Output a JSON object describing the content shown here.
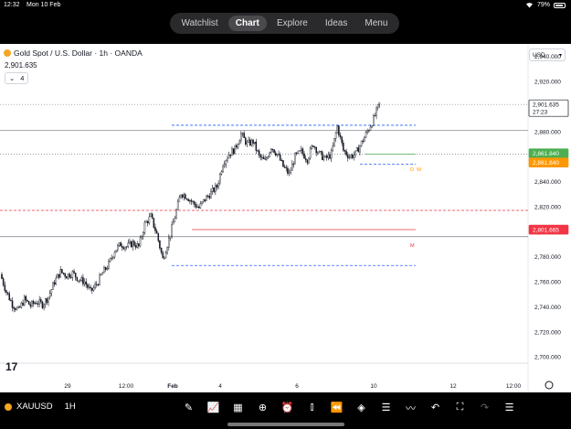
{
  "status": {
    "time": "12:32",
    "date": "Mon 10 Feb",
    "battery": "79%",
    "wifi_icon": "wifi-icon"
  },
  "nav": {
    "tabs": [
      "Watchlist",
      "Chart",
      "Explore",
      "Ideas",
      "Menu"
    ],
    "active": "Chart"
  },
  "symbol": {
    "title": "Gold Spot / U.S. Dollar · 1h · OANDA",
    "price": "2,901.635",
    "indicator_count": "4",
    "currency": "USD"
  },
  "price_tags": {
    "last": "2,901.635",
    "countdown": "27:23",
    "green": "2,861.840",
    "orange": "2,861.840",
    "red": "2,801.665"
  },
  "level_markers": {
    "d": "D",
    "w": "W",
    "m": "M"
  },
  "colors": {
    "up": "#131722",
    "down": "#131722",
    "green": "#4caf50",
    "orange": "#ff9800",
    "red": "#f23645",
    "blue_dash": "#2962ff"
  },
  "chart_data": {
    "type": "candlestick",
    "ylim": [
      2695,
      2950
    ],
    "y_ticks": [
      "2,940.000",
      "2,920.000",
      "2,900.000",
      "2,880.000",
      "2,860.000",
      "2,840.000",
      "2,820.000",
      "2,800.000",
      "2,780.000",
      "2,760.000",
      "2,740.000",
      "2,720.000",
      "2,700.000"
    ],
    "x_ticks": [
      "29",
      "12:00",
      "Feb",
      "4",
      "6",
      "10",
      "12",
      "12:00"
    ],
    "close_path": [
      2766,
      2752,
      2742,
      2737,
      2746,
      2741,
      2744,
      2742,
      2748,
      2760,
      2768,
      2765,
      2767,
      2762,
      2760,
      2752,
      2758,
      2767,
      2774,
      2785,
      2790,
      2788,
      2791,
      2788,
      2806,
      2812,
      2798,
      2778,
      2794,
      2812,
      2831,
      2828,
      2823,
      2819,
      2826,
      2831,
      2836,
      2855,
      2862,
      2866,
      2878,
      2870,
      2872,
      2860,
      2856,
      2868,
      2862,
      2852,
      2846,
      2860,
      2864,
      2858,
      2870,
      2862,
      2858,
      2862,
      2884,
      2865,
      2860,
      2862,
      2871,
      2880,
      2890,
      2902
    ],
    "horizontal_levels": [
      {
        "price": 2901.635,
        "style": "dotted",
        "color": "#787b86"
      },
      {
        "price": 2881.0,
        "style": "solid",
        "color": "#787b86"
      },
      {
        "price": 2861.84,
        "style": "dotted",
        "color": "#787b86"
      },
      {
        "price": 2796.0,
        "style": "solid",
        "color": "#787b86"
      },
      {
        "price": 2817.0,
        "style": "dashed",
        "color": "#f23645"
      }
    ],
    "segments": [
      {
        "price": 2885.0,
        "style": "dashed",
        "color": "#2962ff"
      },
      {
        "price": 2854.0,
        "style": "dashed",
        "color": "#2962ff"
      },
      {
        "price": 2773.0,
        "style": "dashed",
        "color": "#2962ff"
      },
      {
        "price": 2861.84,
        "style": "solid",
        "color": "#4caf50"
      },
      {
        "price": 2801.665,
        "style": "solid",
        "color": "#f23645"
      }
    ]
  },
  "bottom": {
    "symbol": "XAUUSD",
    "interval": "1H"
  }
}
